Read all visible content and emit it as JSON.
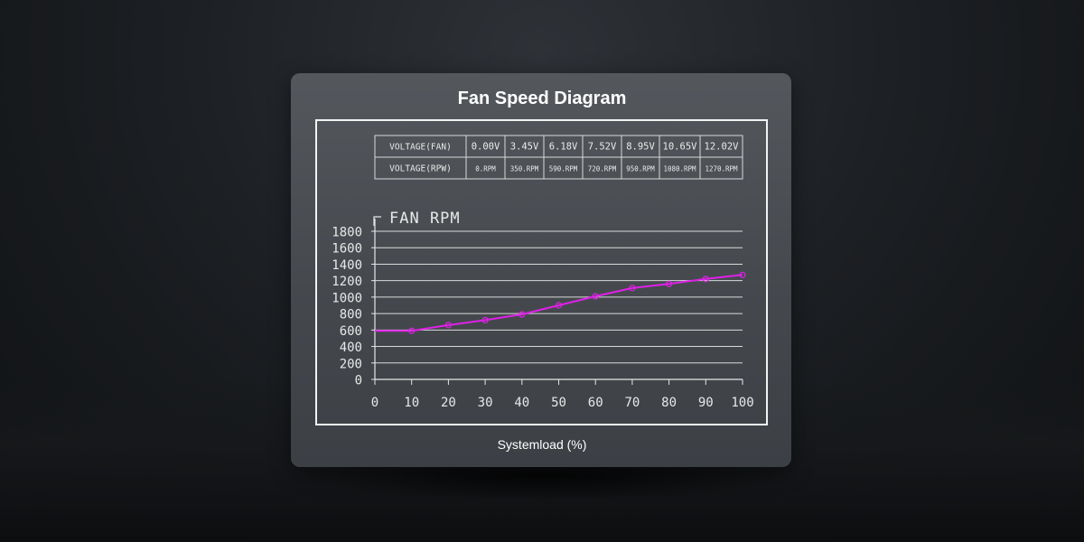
{
  "page": {
    "title": "Fan Speed Diagram",
    "x_caption": "Systemload (%)"
  },
  "spec_table": {
    "rows": [
      {
        "label": "VOLTAGE(FAN)",
        "values": [
          "0.00V",
          "3.45V",
          "6.18V",
          "7.52V",
          "8.95V",
          "10.65V",
          "12.02V"
        ]
      },
      {
        "label": "VOLTAGE(RPW)",
        "values": [
          "0.RPM",
          "350.RPM",
          "590.RPM",
          "720.RPM",
          "950.RPM",
          "1080.RPM",
          "1270.RPM"
        ]
      }
    ]
  },
  "chart_data": {
    "type": "line",
    "title": "",
    "ylabel": "FAN RPM",
    "xlabel": "Systemload (%)",
    "x": [
      0,
      10,
      20,
      30,
      40,
      50,
      60,
      70,
      80,
      90,
      100
    ],
    "series": [
      {
        "values": [
          590,
          590,
          660,
          720,
          790,
          900,
          1010,
          1110,
          1160,
          1220,
          1270
        ]
      }
    ],
    "marker_x": [
      10,
      20,
      30,
      40,
      50,
      60,
      70,
      80,
      90,
      100
    ],
    "xlim": [
      0,
      100
    ],
    "ylim": [
      0,
      1800
    ],
    "xticks": [
      "0",
      "10",
      "20",
      "30",
      "40",
      "50",
      "60",
      "70",
      "80",
      "90",
      "100"
    ],
    "yticks": [
      "0",
      "200",
      "400",
      "600",
      "800",
      "1000",
      "1200",
      "1400",
      "1600",
      "1800"
    ],
    "grid": true,
    "line_color": "#e020e8",
    "grid_color": "#d9d9d9"
  }
}
